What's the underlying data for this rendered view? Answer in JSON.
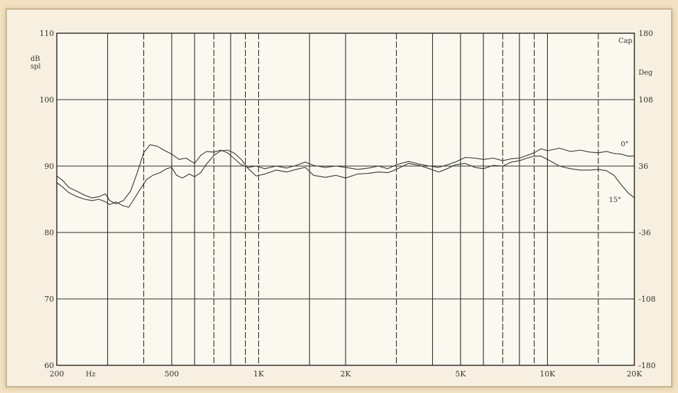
{
  "chart_data": {
    "type": "line",
    "title": "",
    "x_scale": "log",
    "xlim": [
      200,
      20000
    ],
    "x_ticks": [
      {
        "value": 200,
        "label": "200"
      },
      {
        "value": 500,
        "label": "500"
      },
      {
        "value": 1000,
        "label": "1K"
      },
      {
        "value": 2000,
        "label": "2K"
      },
      {
        "value": 5000,
        "label": "5K"
      },
      {
        "value": 10000,
        "label": "10K"
      },
      {
        "value": 20000,
        "label": "20K"
      }
    ],
    "x_unit": "Hz",
    "ylim": [
      60,
      110
    ],
    "y_ticks": [
      60,
      70,
      80,
      90,
      100,
      110
    ],
    "y_unit_lines": [
      "dB",
      "spl"
    ],
    "y2lim": [
      -180,
      180
    ],
    "y2_ticks": [
      {
        "value": -180,
        "label": "-180"
      },
      {
        "value": -108,
        "label": "-108"
      },
      {
        "value": -36,
        "label": "-36"
      },
      {
        "value": 36,
        "label": "36"
      },
      {
        "value": 108,
        "label": "108"
      },
      {
        "value": 180,
        "label": "180"
      }
    ],
    "y2_unit_lines": [
      "Deg"
    ],
    "top_right_label": "Cap",
    "grid": true,
    "vertical_gridlines": [
      {
        "x": 300,
        "style": "solid"
      },
      {
        "x": 400,
        "style": "dashed"
      },
      {
        "x": 500,
        "style": "solid"
      },
      {
        "x": 600,
        "style": "solid"
      },
      {
        "x": 700,
        "style": "dashed"
      },
      {
        "x": 800,
        "style": "solid"
      },
      {
        "x": 900,
        "style": "dashed"
      },
      {
        "x": 1000,
        "style": "dashed"
      },
      {
        "x": 1500,
        "style": "solid"
      },
      {
        "x": 2000,
        "style": "solid"
      },
      {
        "x": 3000,
        "style": "dashed"
      },
      {
        "x": 4000,
        "style": "solid"
      },
      {
        "x": 5000,
        "style": "solid"
      },
      {
        "x": 6000,
        "style": "solid"
      },
      {
        "x": 7000,
        "style": "dashed"
      },
      {
        "x": 8000,
        "style": "solid"
      },
      {
        "x": 9000,
        "style": "dashed"
      },
      {
        "x": 10000,
        "style": "solid"
      },
      {
        "x": 15000,
        "style": "dashed"
      }
    ],
    "series": [
      {
        "name": "0°",
        "label": "0°",
        "points": [
          [
            200,
            88.5
          ],
          [
            210,
            87.8
          ],
          [
            220,
            86.8
          ],
          [
            235,
            86.2
          ],
          [
            250,
            85.6
          ],
          [
            265,
            85.2
          ],
          [
            280,
            85.4
          ],
          [
            295,
            85.8
          ],
          [
            305,
            84.8
          ],
          [
            320,
            84.3
          ],
          [
            340,
            84.8
          ],
          [
            360,
            86.2
          ],
          [
            380,
            89
          ],
          [
            400,
            92
          ],
          [
            420,
            93.2
          ],
          [
            445,
            93
          ],
          [
            470,
            92.4
          ],
          [
            500,
            91.8
          ],
          [
            530,
            91
          ],
          [
            560,
            91.2
          ],
          [
            600,
            90.4
          ],
          [
            630,
            91.6
          ],
          [
            660,
            92.2
          ],
          [
            700,
            92.1
          ],
          [
            740,
            92.4
          ],
          [
            780,
            92
          ],
          [
            820,
            91.2
          ],
          [
            870,
            90.2
          ],
          [
            920,
            89.8
          ],
          [
            980,
            90
          ],
          [
            1050,
            89.6
          ],
          [
            1150,
            90
          ],
          [
            1250,
            89.7
          ],
          [
            1350,
            90.1
          ],
          [
            1450,
            90.6
          ],
          [
            1550,
            90.1
          ],
          [
            1700,
            89.8
          ],
          [
            1850,
            90
          ],
          [
            2000,
            89.8
          ],
          [
            2200,
            89.5
          ],
          [
            2400,
            89.7
          ],
          [
            2600,
            90
          ],
          [
            2800,
            89.6
          ],
          [
            3000,
            90.2
          ],
          [
            3300,
            90.7
          ],
          [
            3600,
            90.3
          ],
          [
            3900,
            90
          ],
          [
            4200,
            89.8
          ],
          [
            4500,
            90.2
          ],
          [
            4800,
            90.6
          ],
          [
            5200,
            91.3
          ],
          [
            5600,
            91.2
          ],
          [
            6000,
            91
          ],
          [
            6500,
            91.2
          ],
          [
            7000,
            90.8
          ],
          [
            7500,
            91.1
          ],
          [
            8000,
            91.2
          ],
          [
            8500,
            91.6
          ],
          [
            9000,
            92
          ],
          [
            9500,
            92.6
          ],
          [
            10000,
            92.3
          ],
          [
            11000,
            92.7
          ],
          [
            12000,
            92.2
          ],
          [
            13000,
            92.4
          ],
          [
            14000,
            92.1
          ],
          [
            15000,
            92
          ],
          [
            16000,
            92.2
          ],
          [
            17000,
            91.9
          ],
          [
            18000,
            91.8
          ],
          [
            19000,
            91.5
          ],
          [
            20000,
            91.5
          ]
        ]
      },
      {
        "name": "15°",
        "label": "15°",
        "points": [
          [
            200,
            87.5
          ],
          [
            210,
            86.8
          ],
          [
            220,
            86
          ],
          [
            235,
            85.4
          ],
          [
            250,
            85
          ],
          [
            265,
            84.8
          ],
          [
            280,
            85
          ],
          [
            295,
            84.6
          ],
          [
            305,
            84.2
          ],
          [
            320,
            84.6
          ],
          [
            340,
            84
          ],
          [
            355,
            83.8
          ],
          [
            370,
            85
          ],
          [
            390,
            86.6
          ],
          [
            410,
            88
          ],
          [
            430,
            88.6
          ],
          [
            455,
            89
          ],
          [
            480,
            89.6
          ],
          [
            500,
            89.8
          ],
          [
            520,
            88.6
          ],
          [
            545,
            88.2
          ],
          [
            575,
            88.8
          ],
          [
            600,
            88.4
          ],
          [
            630,
            89
          ],
          [
            660,
            90.3
          ],
          [
            700,
            91.6
          ],
          [
            740,
            92.3
          ],
          [
            780,
            92.4
          ],
          [
            820,
            92
          ],
          [
            870,
            91
          ],
          [
            920,
            89.6
          ],
          [
            980,
            88.5
          ],
          [
            1050,
            88.8
          ],
          [
            1150,
            89.4
          ],
          [
            1250,
            89.1
          ],
          [
            1350,
            89.5
          ],
          [
            1450,
            89.8
          ],
          [
            1550,
            88.6
          ],
          [
            1700,
            88.3
          ],
          [
            1850,
            88.6
          ],
          [
            2000,
            88.2
          ],
          [
            2200,
            88.8
          ],
          [
            2400,
            88.9
          ],
          [
            2600,
            89.1
          ],
          [
            2800,
            89
          ],
          [
            3000,
            89.5
          ],
          [
            3300,
            90.4
          ],
          [
            3600,
            90.1
          ],
          [
            3900,
            89.6
          ],
          [
            4200,
            89.1
          ],
          [
            4500,
            89.6
          ],
          [
            4800,
            90.2
          ],
          [
            5200,
            90.4
          ],
          [
            5600,
            89.8
          ],
          [
            6000,
            89.6
          ],
          [
            6500,
            90.1
          ],
          [
            7000,
            90
          ],
          [
            7500,
            90.6
          ],
          [
            8000,
            90.8
          ],
          [
            8500,
            91.2
          ],
          [
            9000,
            91.5
          ],
          [
            9500,
            91.5
          ],
          [
            10000,
            91
          ],
          [
            11000,
            90
          ],
          [
            12000,
            89.6
          ],
          [
            13000,
            89.4
          ],
          [
            14000,
            89.4
          ],
          [
            15000,
            89.5
          ],
          [
            16000,
            89.3
          ],
          [
            17000,
            88.6
          ],
          [
            18000,
            87.2
          ],
          [
            19000,
            86
          ],
          [
            20000,
            85.2
          ]
        ]
      }
    ]
  }
}
